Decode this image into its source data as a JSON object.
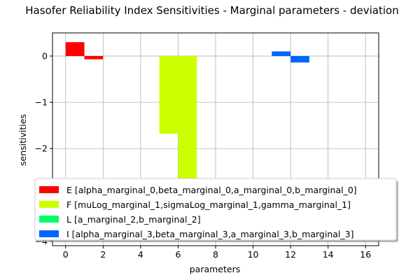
{
  "chart_data": {
    "type": "bar",
    "title": "Hasofer Reliability Index Sensitivities - Marginal parameters - deviation",
    "xlabel": "parameters",
    "ylabel": "sensitivities",
    "xlim": [
      -0.7,
      16.7
    ],
    "ylim": [
      -4.1,
      0.5
    ],
    "xticks": [
      0,
      2,
      4,
      6,
      8,
      10,
      12,
      14,
      16
    ],
    "yticks": [
      0,
      -1,
      -2,
      -3,
      -4
    ],
    "ytick_labels": [
      "0",
      "−1",
      "−2",
      "−3",
      "−4"
    ],
    "grid": true,
    "legend_position": "lower-center",
    "series": [
      {
        "name": "E [alpha_marginal_0,beta_marginal_0,a_marginal_0,b_marginal_0]",
        "color": "#ff0000",
        "x": [
          0,
          1,
          2,
          3
        ],
        "values": [
          0.3,
          -0.07,
          0.0,
          0.0
        ]
      },
      {
        "name": "F [muLog_marginal_1,sigmaLog_marginal_1,gamma_marginal_1]",
        "color": "#ccff00",
        "x": [
          4,
          5,
          6
        ],
        "values": [
          0.0,
          -1.68,
          -2.9
        ]
      },
      {
        "name": "L [a_marginal_2,b_marginal_2]",
        "color": "#00ff66",
        "x": [
          7,
          8
        ],
        "values": [
          0.0,
          0.0
        ]
      },
      {
        "name": "I [alpha_marginal_3,beta_marginal_3,a_marginal_3,b_marginal_3]",
        "color": "#0066ff",
        "x": [
          9,
          10,
          11,
          12
        ],
        "values": [
          0.0,
          0.0,
          0.1,
          -0.14
        ]
      }
    ]
  }
}
